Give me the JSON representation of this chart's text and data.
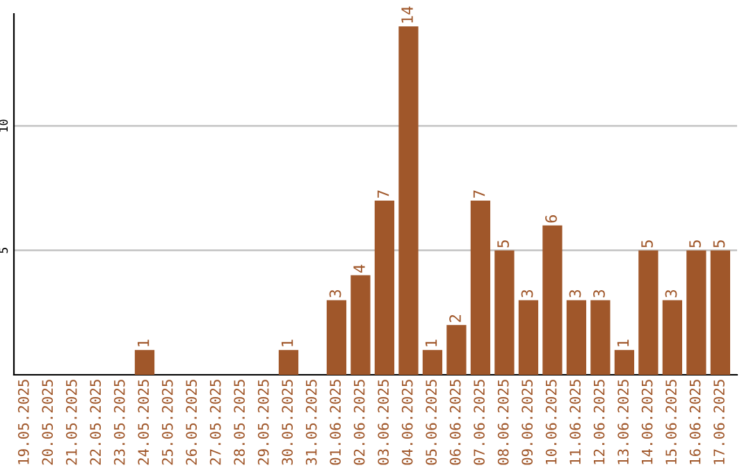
{
  "chart_data": {
    "type": "bar",
    "categories": [
      "19.05.2025",
      "20.05.2025",
      "21.05.2025",
      "22.05.2025",
      "23.05.2025",
      "24.05.2025",
      "25.05.2025",
      "26.05.2025",
      "27.05.2025",
      "28.05.2025",
      "29.05.2025",
      "30.05.2025",
      "31.05.2025",
      "01.06.2025",
      "02.06.2025",
      "03.06.2025",
      "04.06.2025",
      "05.06.2025",
      "06.06.2025",
      "07.06.2025",
      "08.06.2025",
      "09.06.2025",
      "10.06.2025",
      "11.06.2025",
      "12.06.2025",
      "13.06.2025",
      "14.06.2025",
      "15.06.2025",
      "16.06.2025",
      "17.06.2025"
    ],
    "values": [
      0,
      0,
      0,
      0,
      0,
      1,
      0,
      0,
      0,
      0,
      0,
      1,
      0,
      3,
      4,
      7,
      14,
      1,
      2,
      7,
      5,
      3,
      6,
      3,
      3,
      1,
      5,
      3,
      5,
      5
    ],
    "value_labels": [
      null,
      null,
      null,
      null,
      null,
      "1",
      null,
      null,
      null,
      null,
      null,
      "1",
      null,
      "3",
      "4",
      "7",
      "14",
      "1",
      "2",
      "7",
      "5",
      "3",
      "6",
      "3",
      "3",
      "1",
      "5",
      "3",
      "5",
      "5"
    ],
    "color": "#a0572a",
    "ylim": [
      0,
      14.5
    ],
    "yticks": [
      {
        "value": 0,
        "label": null
      },
      5,
      10
    ],
    "grid": "y",
    "legend": false
  }
}
